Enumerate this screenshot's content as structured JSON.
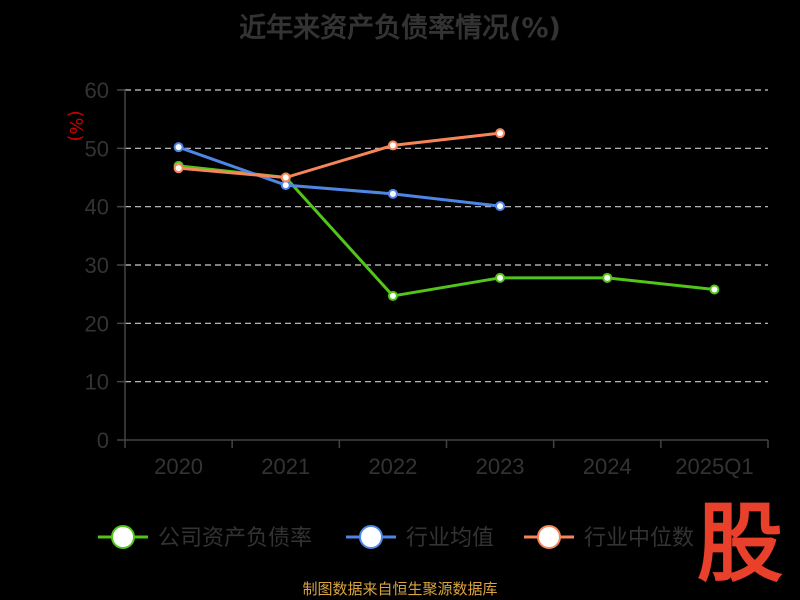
{
  "title": "近年来资产负债率情况(%)",
  "source": "制图数据来自恒生聚源数据库",
  "watermark": "股",
  "colors": {
    "background": "#000000",
    "axis": "#444444",
    "grid": "#cccccc",
    "ylabel": "#cc0000"
  },
  "chart_data": {
    "type": "line",
    "title": "近年来资产负债率情况(%)",
    "ylabel": "(%)",
    "xlabel": "",
    "ylim": [
      0,
      60
    ],
    "yticks": [
      "0",
      "10",
      "20",
      "30",
      "40",
      "50",
      "60"
    ],
    "categories": [
      "2020",
      "2021",
      "2022",
      "2023",
      "2024",
      "2025Q1"
    ],
    "grid": true,
    "legend_position": "bottom",
    "series": [
      {
        "name": "公司资产负债率",
        "color": "#52c41a",
        "values": [
          47.0,
          45.0,
          24.7,
          27.8,
          27.8,
          25.8
        ]
      },
      {
        "name": "行业均值",
        "color": "#4f86e6",
        "values": [
          50.2,
          43.7,
          42.2,
          40.1,
          null,
          null
        ]
      },
      {
        "name": "行业中位数",
        "color": "#f6865a",
        "values": [
          46.6,
          45.0,
          50.5,
          52.6,
          null,
          null
        ]
      }
    ]
  }
}
